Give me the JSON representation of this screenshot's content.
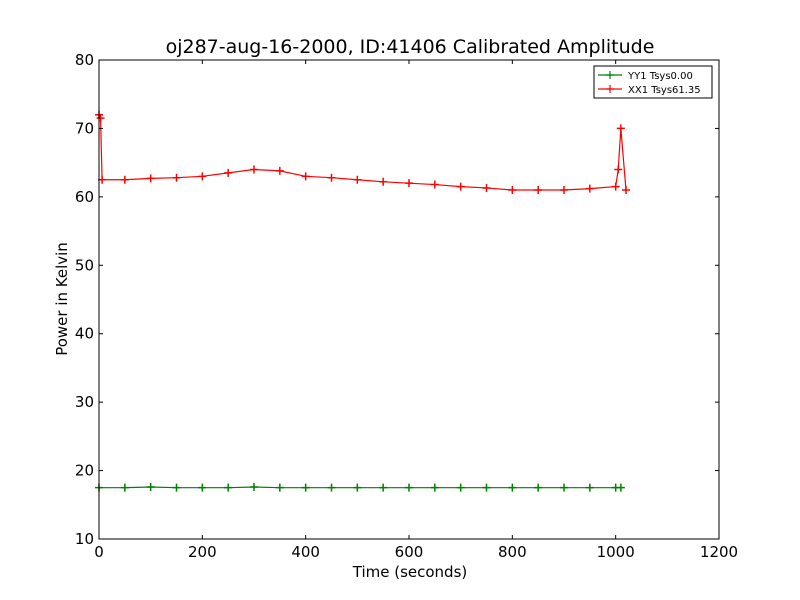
{
  "chart_data": {
    "type": "line",
    "title": "oj287-aug-16-2000, ID:41406 Calibrated Amplitude",
    "xlabel": "Time (seconds)",
    "ylabel": "Power in Kelvin",
    "xlim": [
      0,
      1200
    ],
    "ylim": [
      10,
      80
    ],
    "xticks": [
      0,
      200,
      400,
      600,
      800,
      1000,
      1200
    ],
    "yticks": [
      10,
      20,
      30,
      40,
      50,
      60,
      70,
      80
    ],
    "grid": false,
    "legend": "top-right",
    "series": [
      {
        "name": "YY1 Tsys0.00",
        "color": "#008000",
        "marker": "+",
        "x": [
          0,
          50,
          100,
          150,
          200,
          250,
          300,
          350,
          400,
          450,
          500,
          550,
          600,
          650,
          700,
          750,
          800,
          850,
          900,
          950,
          1000,
          1010
        ],
        "y": [
          17.5,
          17.5,
          17.6,
          17.5,
          17.5,
          17.5,
          17.6,
          17.5,
          17.5,
          17.5,
          17.5,
          17.5,
          17.5,
          17.5,
          17.5,
          17.5,
          17.5,
          17.5,
          17.5,
          17.5,
          17.5,
          17.5
        ]
      },
      {
        "name": "XX1 Tsys61.35",
        "color": "#ff0000",
        "marker": "+",
        "x": [
          0,
          3,
          6,
          50,
          100,
          150,
          200,
          250,
          300,
          350,
          400,
          450,
          500,
          550,
          600,
          650,
          700,
          750,
          800,
          850,
          900,
          950,
          1000,
          1005,
          1010,
          1020
        ],
        "y": [
          72,
          71.5,
          62.5,
          62.5,
          62.7,
          62.8,
          63.0,
          63.5,
          64.0,
          63.8,
          63.0,
          62.8,
          62.5,
          62.2,
          62.0,
          61.8,
          61.5,
          61.3,
          61.0,
          61.0,
          61.0,
          61.2,
          61.5,
          64,
          70,
          61
        ]
      }
    ]
  }
}
